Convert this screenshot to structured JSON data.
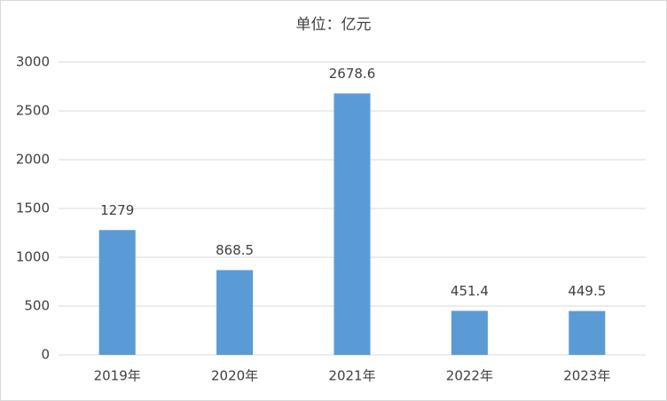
{
  "chart_data": {
    "type": "bar",
    "title": "单位：亿元",
    "categories": [
      "2019年",
      "2020年",
      "2021年",
      "2022年",
      "2023年"
    ],
    "values": [
      1279,
      868.5,
      2678.6,
      451.4,
      449.5
    ],
    "color": "#5b9bd5",
    "ylim": [
      0,
      3000
    ],
    "yticks": [
      0,
      500,
      1000,
      1500,
      2000,
      2500,
      3000
    ],
    "grid": true
  }
}
